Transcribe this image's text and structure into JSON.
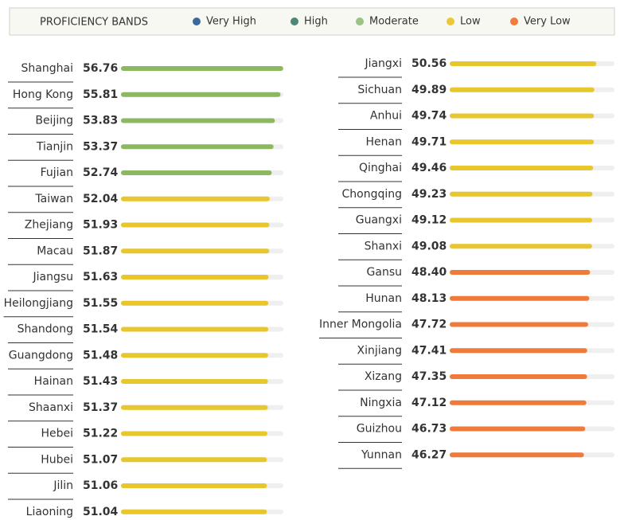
{
  "chart_data": {
    "type": "bar",
    "orientation": "horizontal",
    "legend_title": "PROFICIENCY BANDS",
    "legend": [
      {
        "name": "Very High",
        "color": "#3b6a9a"
      },
      {
        "name": "High",
        "color": "#4e8677"
      },
      {
        "name": "Moderate",
        "color": "#9cc288"
      },
      {
        "name": "Low",
        "color": "#ebc837"
      },
      {
        "name": "Very Low",
        "color": "#f27b3d"
      }
    ],
    "categories": [
      "Shanghai",
      "Hong Kong",
      "Beijing",
      "Tianjin",
      "Fujian",
      "Taiwan",
      "Zhejiang",
      "Macau",
      "Jiangsu",
      "Heilongjiang",
      "Shandong",
      "Guangdong",
      "Hainan",
      "Shaanxi",
      "Hebei",
      "Hubei",
      "Jilin",
      "Liaoning",
      "Jiangxi",
      "Sichuan",
      "Anhui",
      "Henan",
      "Qinghai",
      "Chongqing",
      "Guangxi",
      "Shanxi",
      "Gansu",
      "Hunan",
      "Inner Mongolia",
      "Xinjiang",
      "Xizang",
      "Ningxia",
      "Guizhou",
      "Yunnan"
    ],
    "values": [
      56.76,
      55.81,
      53.83,
      53.37,
      52.74,
      52.04,
      51.93,
      51.87,
      51.63,
      51.55,
      51.54,
      51.48,
      51.43,
      51.37,
      51.22,
      51.07,
      51.06,
      51.04,
      50.56,
      49.89,
      49.74,
      49.71,
      49.46,
      49.23,
      49.12,
      49.08,
      48.4,
      48.13,
      47.72,
      47.41,
      47.35,
      47.12,
      46.73,
      46.27
    ],
    "value_labels": [
      "56.76",
      "55.81",
      "53.83",
      "53.37",
      "52.74",
      "52.04",
      "51.93",
      "51.87",
      "51.63",
      "51.55",
      "51.54",
      "51.48",
      "51.43",
      "51.37",
      "51.22",
      "51.07",
      "51.06",
      "51.04",
      "50.56",
      "49.89",
      "49.74",
      "49.71",
      "49.46",
      "49.23",
      "49.12",
      "49.08",
      "48.40",
      "48.13",
      "47.72",
      "47.41",
      "47.35",
      "47.12",
      "46.73",
      "46.27"
    ],
    "colors": [
      "#8cb860",
      "#8cb860",
      "#8cb860",
      "#8cb860",
      "#8cb860",
      "#e8c62e",
      "#e8c62e",
      "#e8c62e",
      "#e8c62e",
      "#e8c62e",
      "#e8c62e",
      "#e8c62e",
      "#e8c62e",
      "#e8c62e",
      "#e8c62e",
      "#e8c62e",
      "#e8c62e",
      "#e8c62e",
      "#e8c62e",
      "#e8c62e",
      "#e8c62e",
      "#e8c62e",
      "#e8c62e",
      "#e8c62e",
      "#e8c62e",
      "#e8c62e",
      "#f07a3a",
      "#f07a3a",
      "#f07a3a",
      "#f07a3a",
      "#f07a3a",
      "#f07a3a",
      "#f07a3a",
      "#f07a3a"
    ],
    "xlim": [
      0,
      56.8
    ]
  }
}
